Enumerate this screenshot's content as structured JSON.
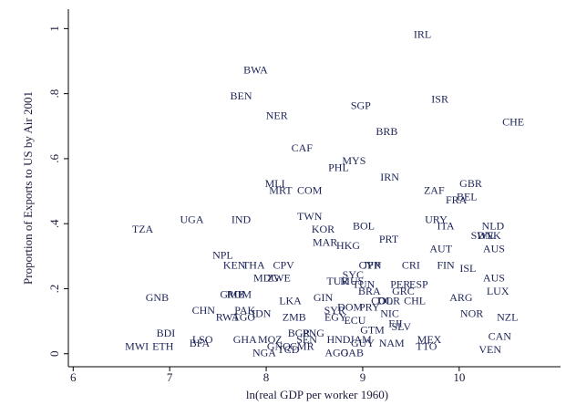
{
  "chart_data": {
    "type": "scatter",
    "x_label": "ln(real GDP per worker 1960)",
    "y_label": "Proportion of Exports to US by Air 2001",
    "xlim": [
      5.95,
      11.05
    ],
    "ylim": [
      -0.04,
      1.06
    ],
    "xticks": [
      6,
      7,
      8,
      9,
      10
    ],
    "yticks": [
      0,
      {
        "value": 0.2,
        "label": ".2"
      },
      {
        "value": 0.4,
        "label": ".4"
      },
      {
        "value": 0.6,
        "label": ".6"
      },
      {
        "value": 0.8,
        "label": ".8"
      },
      1
    ],
    "color": "#1c2357",
    "point_labels": [
      "IRL",
      "BWA",
      "BEN",
      "ISR",
      "SGP",
      "NER",
      "CHE",
      "BRB",
      "CAF",
      "MYS",
      "PHL",
      "IRN",
      "MLI",
      "GBR",
      "MRT",
      "COM",
      "ZAF",
      "BEL",
      "FRA",
      "TWN",
      "IND",
      "UGA",
      "URY",
      "ITA",
      "NLD",
      "TZA",
      "KOR",
      "BOL",
      "SWE",
      "DNK",
      "MAR",
      "PRT",
      "HKG",
      "AUT",
      "AUS",
      "NPL",
      "KEN",
      "THA",
      "CPV",
      "CRI",
      "CYP",
      "JPN",
      "FIN",
      "ISL",
      "MDG",
      "ZWE",
      "SYC",
      "TUR",
      "MUS",
      "TUN",
      "PER",
      "ESP",
      "AUS",
      "BRA",
      "GRC",
      "LUX",
      "GNB",
      "GMB",
      "ROM",
      "LKA",
      "GIN",
      "ARG",
      "CHL",
      "COL",
      "DOR",
      "SYR",
      "DOM",
      "PRY",
      "CHN",
      "PAK",
      "IDN",
      "NOR",
      "RWA",
      "TGO",
      "ZMB",
      "EGY",
      "ECU",
      "NIC",
      "FJI",
      "NZL",
      "GTM",
      "SLV",
      "BDI",
      "PNG",
      "BGR",
      "GHA",
      "MOZ",
      "SEN",
      "HND",
      "JAM",
      "GUY",
      "MEX",
      "CAN",
      "LSO",
      "BFA",
      "GNQ",
      "CMR",
      "NAM",
      "TTO",
      "MWI",
      "ETH",
      "TCD",
      "NGA",
      "AGO",
      "GAB",
      "VEN"
    ],
    "x": [
      9.62,
      7.89,
      7.74,
      9.8,
      8.98,
      8.11,
      10.56,
      9.25,
      8.37,
      8.91,
      8.75,
      9.28,
      8.09,
      10.12,
      8.15,
      8.45,
      9.74,
      10.08,
      9.97,
      8.45,
      7.74,
      7.23,
      9.76,
      9.86,
      10.35,
      6.72,
      8.59,
      9.01,
      10.24,
      10.31,
      8.61,
      9.27,
      8.85,
      9.81,
      10.36,
      7.55,
      7.67,
      7.87,
      8.18,
      9.5,
      9.07,
      9.1,
      9.86,
      10.09,
      8.0,
      8.13,
      8.9,
      8.74,
      8.89,
      9.01,
      9.39,
      9.58,
      10.36,
      9.07,
      9.42,
      10.4,
      6.87,
      7.65,
      7.72,
      8.25,
      8.59,
      10.02,
      9.54,
      9.2,
      9.27,
      8.71,
      8.87,
      9.07,
      7.35,
      7.78,
      7.95,
      10.13,
      7.6,
      7.77,
      8.29,
      8.72,
      8.92,
      9.28,
      9.34,
      10.5,
      9.1,
      9.4,
      6.96,
      8.49,
      8.34,
      7.78,
      8.04,
      8.42,
      8.75,
      8.98,
      9.0,
      9.69,
      10.42,
      7.34,
      7.31,
      8.13,
      8.37,
      9.3,
      9.66,
      6.66,
      6.93,
      8.23,
      7.98,
      8.73,
      8.89,
      10.32
    ],
    "values": [
      0.98,
      0.87,
      0.79,
      0.78,
      0.76,
      0.73,
      0.71,
      0.68,
      0.63,
      0.59,
      0.57,
      0.54,
      0.52,
      0.52,
      0.5,
      0.5,
      0.5,
      0.48,
      0.47,
      0.42,
      0.41,
      0.41,
      0.41,
      0.39,
      0.39,
      0.38,
      0.38,
      0.39,
      0.36,
      0.36,
      0.34,
      0.35,
      0.33,
      0.32,
      0.32,
      0.3,
      0.27,
      0.27,
      0.27,
      0.27,
      0.27,
      0.27,
      0.27,
      0.26,
      0.23,
      0.23,
      0.24,
      0.22,
      0.22,
      0.21,
      0.21,
      0.21,
      0.23,
      0.19,
      0.19,
      0.19,
      0.17,
      0.18,
      0.18,
      0.16,
      0.17,
      0.17,
      0.16,
      0.16,
      0.16,
      0.13,
      0.14,
      0.14,
      0.13,
      0.13,
      0.12,
      0.12,
      0.11,
      0.11,
      0.11,
      0.11,
      0.1,
      0.12,
      0.09,
      0.11,
      0.07,
      0.08,
      0.06,
      0.06,
      0.06,
      0.04,
      0.04,
      0.04,
      0.04,
      0.04,
      0.03,
      0.04,
      0.05,
      0.04,
      0.03,
      0.02,
      0.02,
      0.03,
      0.02,
      0.02,
      0.02,
      0.01,
      0.0,
      0.0,
      0.0,
      0.01
    ]
  }
}
